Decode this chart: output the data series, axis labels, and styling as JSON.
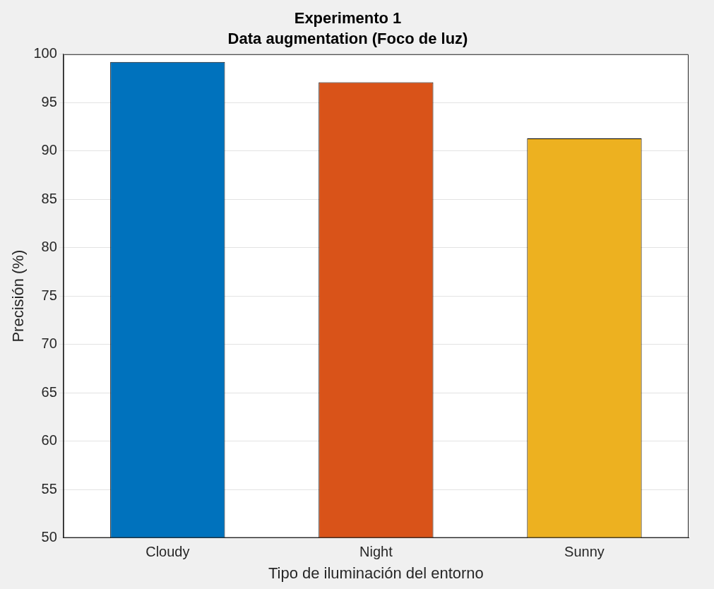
{
  "chart_data": {
    "type": "bar",
    "title": "Experimento 1",
    "subtitle": "Data augmentation (Foco de luz)",
    "xlabel": "Tipo de iluminación del entorno",
    "ylabel": "Precisión (%)",
    "categories": [
      "Cloudy",
      "Night",
      "Sunny"
    ],
    "colors": [
      "#0072bd",
      "#d95319",
      "#edb120"
    ],
    "values": [
      99.2,
      97.1,
      91.3
    ],
    "ylim": [
      50,
      100
    ],
    "yticks": [
      50,
      55,
      60,
      65,
      70,
      75,
      80,
      85,
      90,
      95,
      100
    ],
    "grid": "y",
    "legend": false
  }
}
